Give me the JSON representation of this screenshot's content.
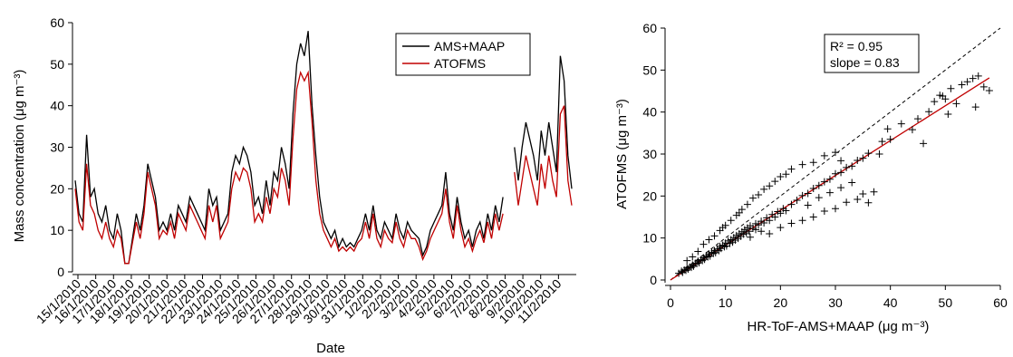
{
  "chart_data": [
    {
      "type": "line",
      "xlabel": "Date",
      "ylabel": "Mass concentration (μg m⁻³)",
      "ylim": [
        0,
        60
      ],
      "yticks": [
        0,
        10,
        20,
        30,
        40,
        50,
        60
      ],
      "xtick_labels": [
        "15/1/2010",
        "16/1/2010",
        "17/1/2010",
        "18/1/2010",
        "19/1/2010",
        "20/1/2010",
        "21/1/2010",
        "22/1/2010",
        "23/1/2010",
        "24/1/2010",
        "25/1/2010",
        "26/1/2010",
        "27/1/2010",
        "28/1/2010",
        "29/1/2010",
        "30/1/2010",
        "31/1/2010",
        "1/2/2010",
        "2/2/2010",
        "3/2/2010",
        "4/2/2010",
        "5/2/2010",
        "6/2/2010",
        "7/2/2010",
        "8/2/2010",
        "9/2/2010",
        "10/2/2010",
        "11/2/2010"
      ],
      "legend_position": "top-right",
      "grid": false,
      "series": [
        {
          "name": "AMS+MAAP",
          "color": "#000000",
          "values": [
            22,
            14,
            12,
            33,
            18,
            20,
            14,
            12,
            16,
            10,
            8,
            14,
            10,
            2,
            2,
            8,
            14,
            10,
            16,
            26,
            22,
            18,
            10,
            12,
            10,
            14,
            10,
            16,
            14,
            12,
            18,
            16,
            14,
            12,
            10,
            20,
            16,
            18,
            10,
            12,
            14,
            24,
            28,
            26,
            30,
            28,
            24,
            16,
            18,
            14,
            22,
            16,
            24,
            22,
            30,
            26,
            20,
            38,
            50,
            55,
            52,
            58,
            40,
            28,
            18,
            12,
            10,
            8,
            10,
            6,
            8,
            6,
            7,
            6,
            8,
            10,
            14,
            10,
            16,
            10,
            8,
            12,
            10,
            8,
            14,
            10,
            8,
            12,
            10,
            9,
            8,
            4,
            6,
            10,
            12,
            14,
            16,
            24,
            14,
            10,
            18,
            12,
            8,
            10,
            6,
            10,
            12,
            8,
            14,
            10,
            16,
            12,
            18,
            null,
            null,
            30,
            22,
            30,
            36,
            32,
            28,
            22,
            34,
            28,
            36,
            30,
            24,
            52,
            46,
            28,
            20
          ]
        },
        {
          "name": "ATOFMS",
          "color": "#c00000",
          "values": [
            20,
            12,
            10,
            26,
            16,
            14,
            10,
            8,
            12,
            8,
            6,
            10,
            8,
            2,
            2,
            7,
            12,
            8,
            14,
            24,
            20,
            16,
            8,
            10,
            9,
            12,
            8,
            14,
            12,
            10,
            16,
            14,
            12,
            10,
            8,
            16,
            12,
            16,
            8,
            10,
            12,
            20,
            24,
            22,
            25,
            24,
            20,
            12,
            14,
            12,
            18,
            14,
            20,
            18,
            25,
            22,
            16,
            32,
            44,
            48,
            46,
            48,
            36,
            22,
            14,
            10,
            8,
            6,
            8,
            5,
            6,
            5,
            6,
            5,
            7,
            8,
            12,
            8,
            14,
            8,
            6,
            10,
            8,
            7,
            12,
            8,
            6,
            10,
            8,
            8,
            6,
            3,
            5,
            8,
            10,
            12,
            14,
            20,
            12,
            8,
            16,
            10,
            6,
            8,
            5,
            8,
            10,
            7,
            12,
            8,
            14,
            10,
            14,
            null,
            null,
            24,
            16,
            22,
            28,
            24,
            20,
            16,
            26,
            20,
            28,
            22,
            18,
            38,
            40,
            22,
            16
          ]
        }
      ]
    },
    {
      "type": "scatter",
      "xlabel": "HR-ToF-AMS+MAAP (μg m⁻³)",
      "ylabel": "ATOFMS (μg m⁻³)",
      "xlim": [
        0,
        60
      ],
      "ylim": [
        0,
        60
      ],
      "xticks": [
        0,
        10,
        20,
        30,
        40,
        50,
        60
      ],
      "yticks": [
        0,
        10,
        20,
        30,
        40,
        50,
        60
      ],
      "marker": "+",
      "grid": false,
      "annotation": {
        "r2_label": "R² = 0.95",
        "slope_label": "slope = 0.83"
      },
      "fit_line": {
        "slope": 0.83,
        "intercept": 0,
        "color": "#c00000"
      },
      "one_to_one_line": {
        "style": "dashed",
        "color": "#000000"
      },
      "points": [
        [
          1.5,
          1.6
        ],
        [
          2.0,
          2.1
        ],
        [
          2.2,
          1.8
        ],
        [
          2.5,
          2.4
        ],
        [
          2.8,
          2.3
        ],
        [
          3.0,
          2.9
        ],
        [
          3.2,
          2.6
        ],
        [
          3.5,
          3.1
        ],
        [
          3.8,
          3.0
        ],
        [
          4.0,
          3.6
        ],
        [
          4.2,
          3.3
        ],
        [
          4.5,
          4.0
        ],
        [
          4.8,
          3.9
        ],
        [
          5.0,
          4.5
        ],
        [
          5.2,
          4.1
        ],
        [
          5.5,
          4.8
        ],
        [
          5.8,
          4.6
        ],
        [
          6.0,
          5.3
        ],
        [
          6.2,
          4.9
        ],
        [
          6.5,
          5.8
        ],
        [
          6.8,
          5.5
        ],
        [
          7.0,
          6.2
        ],
        [
          7.2,
          5.7
        ],
        [
          7.5,
          6.6
        ],
        [
          7.8,
          6.3
        ],
        [
          8.0,
          7.0
        ],
        [
          8.2,
          6.5
        ],
        [
          8.5,
          7.4
        ],
        [
          8.8,
          7.0
        ],
        [
          9.0,
          8.0
        ],
        [
          9.2,
          7.5
        ],
        [
          9.5,
          8.3
        ],
        [
          9.8,
          7.9
        ],
        [
          10.0,
          8.8
        ],
        [
          10.2,
          8.1
        ],
        [
          10.5,
          9.3
        ],
        [
          10.8,
          8.7
        ],
        [
          11.0,
          9.6
        ],
        [
          11.3,
          9.0
        ],
        [
          11.5,
          10.1
        ],
        [
          11.8,
          9.5
        ],
        [
          12.0,
          10.6
        ],
        [
          12.3,
          9.9
        ],
        [
          12.5,
          11.0
        ],
        [
          12.8,
          10.4
        ],
        [
          13.0,
          11.5
        ],
        [
          13.3,
          10.9
        ],
        [
          13.5,
          12.0
        ],
        [
          13.8,
          11.2
        ],
        [
          14.0,
          12.4
        ],
        [
          14.3,
          11.6
        ],
        [
          14.5,
          12.9
        ],
        [
          15.0,
          12.3
        ],
        [
          15.5,
          13.4
        ],
        [
          16.0,
          13.1
        ],
        [
          16.5,
          14.0
        ],
        [
          17.0,
          13.6
        ],
        [
          17.5,
          14.8
        ],
        [
          18.0,
          14.2
        ],
        [
          18.5,
          15.6
        ],
        [
          19.0,
          15.0
        ],
        [
          19.5,
          16.3
        ],
        [
          20.0,
          15.9
        ],
        [
          20.5,
          17.0
        ],
        [
          21.0,
          16.5
        ],
        [
          22.0,
          18.0
        ],
        [
          23.0,
          19.0
        ],
        [
          24.0,
          20.1
        ],
        [
          25.0,
          20.6
        ],
        [
          26.0,
          21.8
        ],
        [
          27.0,
          22.5
        ],
        [
          28.0,
          23.4
        ],
        [
          29.0,
          24.0
        ],
        [
          30.0,
          25.3
        ],
        [
          31.0,
          25.6
        ],
        [
          32.0,
          26.8
        ],
        [
          33.0,
          27.1
        ],
        [
          34.0,
          28.5
        ],
        [
          35.0,
          29.0
        ],
        [
          36.0,
          30.2
        ],
        [
          8.0,
          10.5
        ],
        [
          9.0,
          11.8
        ],
        [
          10.0,
          13.0
        ],
        [
          11.0,
          14.2
        ],
        [
          12.0,
          15.4
        ],
        [
          13.0,
          16.8
        ],
        [
          14.0,
          18.0
        ],
        [
          15.0,
          19.5
        ],
        [
          16.0,
          20.3
        ],
        [
          17.0,
          21.6
        ],
        [
          18.0,
          22.4
        ],
        [
          19.0,
          23.5
        ],
        [
          20.0,
          24.6
        ],
        [
          21.0,
          25.2
        ],
        [
          22.0,
          26.4
        ],
        [
          24.0,
          27.5
        ],
        [
          26.0,
          28.0
        ],
        [
          28.0,
          29.6
        ],
        [
          30.0,
          30.4
        ],
        [
          31.0,
          28.4
        ],
        [
          18.0,
          11.0
        ],
        [
          20.0,
          12.5
        ],
        [
          22.0,
          13.5
        ],
        [
          24.0,
          14.2
        ],
        [
          26.0,
          15.0
        ],
        [
          28.0,
          16.4
        ],
        [
          30.0,
          17.0
        ],
        [
          32.0,
          18.5
        ],
        [
          34.0,
          19.2
        ],
        [
          35.0,
          20.5
        ],
        [
          25.0,
          17.8
        ],
        [
          27.0,
          19.6
        ],
        [
          29.0,
          20.8
        ],
        [
          31.0,
          22.0
        ],
        [
          33.0,
          23.2
        ],
        [
          36.0,
          18.4
        ],
        [
          37.0,
          21.0
        ],
        [
          38.0,
          30.0
        ],
        [
          38.5,
          33.0
        ],
        [
          40.0,
          33.5
        ],
        [
          39.5,
          36.0
        ],
        [
          42.0,
          37.2
        ],
        [
          44.0,
          35.8
        ],
        [
          45.0,
          38.4
        ],
        [
          46.0,
          32.5
        ],
        [
          47.0,
          40.1
        ],
        [
          48.0,
          42.5
        ],
        [
          49.0,
          44.0
        ],
        [
          50.0,
          43.1
        ],
        [
          51.0,
          45.6
        ],
        [
          52.0,
          42.0
        ],
        [
          53.0,
          46.5
        ],
        [
          54.0,
          47.2
        ],
        [
          55.0,
          48.0
        ],
        [
          56.0,
          48.6
        ],
        [
          57.0,
          46.0
        ],
        [
          58.0,
          45.1
        ],
        [
          55.5,
          41.2
        ],
        [
          50.5,
          39.5
        ],
        [
          49.5,
          43.8
        ],
        [
          6.0,
          8.5
        ],
        [
          7.0,
          9.6
        ],
        [
          5.0,
          6.8
        ],
        [
          4.0,
          5.5
        ],
        [
          3.0,
          4.6
        ],
        [
          9.5,
          12.5
        ],
        [
          12.5,
          16.0
        ],
        [
          15.5,
          12.0
        ],
        [
          16.5,
          11.6
        ],
        [
          14.5,
          10.2
        ]
      ]
    }
  ],
  "legend": [
    {
      "label": "AMS+MAAP",
      "color": "#000000"
    },
    {
      "label": "ATOFMS",
      "color": "#c00000"
    }
  ]
}
